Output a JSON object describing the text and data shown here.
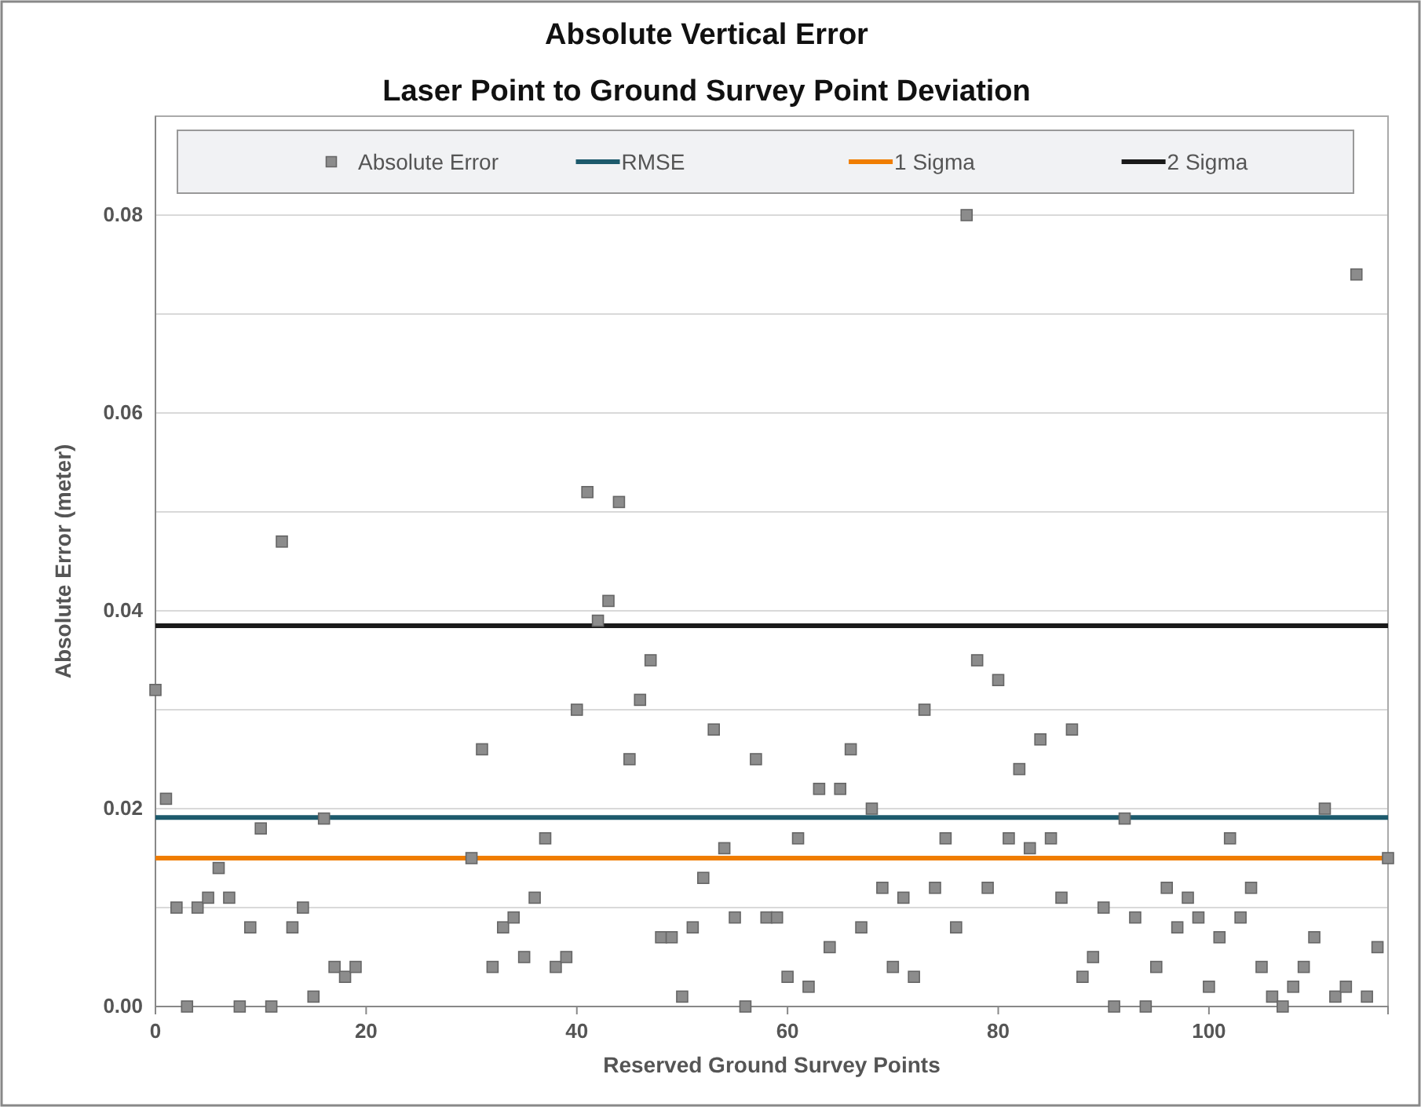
{
  "chart_data": {
    "type": "scatter",
    "title": "Absolute Vertical Error",
    "subtitle": "Laser Point to Ground Survey Point Deviation",
    "xlabel": "Reserved Ground Survey Points",
    "ylabel": "Absolute Error (meter)",
    "xlim": [
      0,
      117
    ],
    "xticks": [
      0,
      20,
      40,
      60,
      80,
      100
    ],
    "ylim": [
      0,
      0.09
    ],
    "yticks": [
      {
        "value": 0,
        "label": "0.00"
      },
      {
        "value": 0.01,
        "label": null
      },
      {
        "value": 0.02,
        "label": "0.02"
      },
      {
        "value": 0.03,
        "label": null
      },
      {
        "value": 0.04,
        "label": "0.04"
      },
      {
        "value": 0.05,
        "label": null
      },
      {
        "value": 0.06,
        "label": "0.06"
      },
      {
        "value": 0.07,
        "label": null
      },
      {
        "value": 0.08,
        "label": "0.08"
      }
    ],
    "grid": "y",
    "legend": "top",
    "marker": "square",
    "series": [
      {
        "name": "Absolute Error",
        "color": "#8c8c8c",
        "x": [
          0,
          1,
          2,
          3,
          4,
          5,
          6,
          7,
          8,
          9,
          10,
          11,
          12,
          13,
          14,
          15,
          16,
          17,
          18,
          19,
          30,
          31,
          32,
          33,
          34,
          35,
          36,
          37,
          38,
          39,
          40,
          41,
          42,
          43,
          44,
          45,
          46,
          47,
          48,
          49,
          50,
          51,
          52,
          53,
          54,
          55,
          56,
          57,
          58,
          59,
          60,
          61,
          62,
          63,
          64,
          65,
          66,
          67,
          68,
          69,
          70,
          71,
          72,
          73,
          74,
          75,
          76,
          77,
          78,
          79,
          80,
          81,
          82,
          83,
          84,
          85,
          86,
          87,
          88,
          89,
          90,
          91,
          92,
          93,
          94,
          95,
          96,
          97,
          98,
          99,
          100,
          101,
          102,
          103,
          104,
          105,
          106,
          107,
          108,
          109,
          110,
          111,
          112,
          113,
          114,
          115,
          116,
          117
        ],
        "values": [
          0.032,
          0.021,
          0.01,
          0,
          0.01,
          0.011,
          0.014,
          0.011,
          0,
          0.008,
          0.018,
          0,
          0.047,
          0.008,
          0.01,
          0.001,
          0.019,
          0.004,
          0.003,
          0.004,
          0.015,
          0.026,
          0.004,
          0.008,
          0.009,
          0.005,
          0.011,
          0.017,
          0.004,
          0.005,
          0.03,
          0.052,
          0.039,
          0.041,
          0.051,
          0.025,
          0.031,
          0.035,
          0.007,
          0.007,
          0.001,
          0.008,
          0.013,
          0.028,
          0.016,
          0.009,
          0,
          0.025,
          0.009,
          0.009,
          0.003,
          0.017,
          0.002,
          0.022,
          0.006,
          0.022,
          0.026,
          0.008,
          0.02,
          0.012,
          0.004,
          0.011,
          0.003,
          0.03,
          0.012,
          0.017,
          0.008,
          0.08,
          0.035,
          0.012,
          0.033,
          0.017,
          0.024,
          0.016,
          0.027,
          0.017,
          0.011,
          0.028,
          0.003,
          0.005,
          0.01,
          0,
          0.019,
          0.009,
          0,
          0.004,
          0.012,
          0.008,
          0.011,
          0.009,
          0.002,
          0.007,
          0.017,
          0.009,
          0.012,
          0.004,
          0.001,
          0,
          0.002,
          0.004,
          0.007,
          0.02,
          0.001,
          0.002,
          0.074,
          0.001,
          0.006,
          0.015
        ]
      },
      {
        "name": "RMSE",
        "type": "line",
        "color": "#1d5a6c",
        "marker": "none",
        "x": [
          0,
          117
        ],
        "values": [
          0.0191,
          0.0191
        ]
      },
      {
        "name": "1 Sigma",
        "type": "line",
        "color": "#f07d00",
        "marker": "none",
        "x": [
          0,
          117
        ],
        "values": [
          0.015,
          0.015
        ]
      },
      {
        "name": "2 Sigma",
        "type": "line",
        "color": "#1a1a1a",
        "marker": "none",
        "x": [
          0,
          117
        ],
        "values": [
          0.0385,
          0.0385
        ]
      }
    ]
  }
}
